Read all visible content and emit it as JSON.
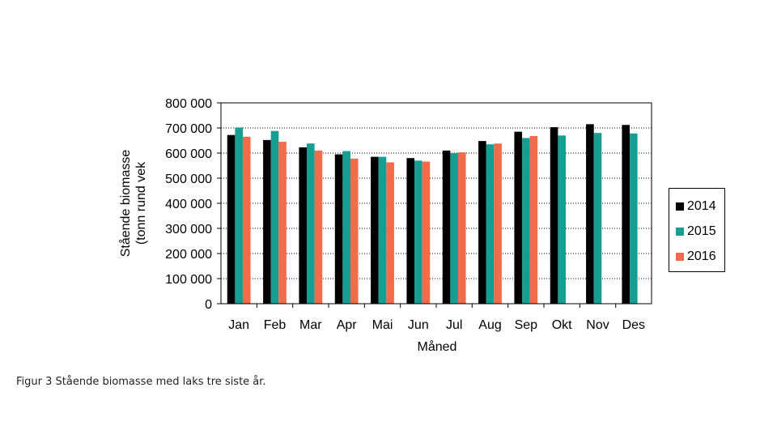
{
  "chart_data": {
    "type": "bar",
    "title": "",
    "xlabel": "Måned",
    "ylabel_lines": [
      "Stående biomasse",
      "(tonn rund vek"
    ],
    "categories": [
      "Jan",
      "Feb",
      "Mar",
      "Apr",
      "Mai",
      "Jun",
      "Jul",
      "Aug",
      "Sep",
      "Okt",
      "Nov",
      "Des"
    ],
    "ylim": [
      0,
      800000
    ],
    "yticks": [
      0,
      100000,
      200000,
      300000,
      400000,
      500000,
      600000,
      700000,
      800000
    ],
    "ytick_labels": [
      "0",
      "100 000",
      "200 000",
      "300 000",
      "400 000",
      "500 000",
      "600 000",
      "700 000",
      "800 000"
    ],
    "grid": true,
    "legend_position": "right",
    "series": [
      {
        "name": "2014",
        "color": "#000000",
        "values": [
          672000,
          652000,
          623000,
          595000,
          585000,
          580000,
          610000,
          648000,
          685000,
          703000,
          715000,
          712000
        ]
      },
      {
        "name": "2015",
        "color": "#169e93",
        "values": [
          702000,
          688000,
          638000,
          608000,
          585000,
          570000,
          600000,
          635000,
          660000,
          670000,
          680000,
          678000
        ]
      },
      {
        "name": "2016",
        "color": "#f26b4a",
        "values": [
          665000,
          645000,
          610000,
          578000,
          563000,
          566000,
          603000,
          638000,
          668000,
          null,
          null,
          null
        ]
      }
    ]
  },
  "caption": "Figur 3 Stående biomasse med laks tre siste år."
}
